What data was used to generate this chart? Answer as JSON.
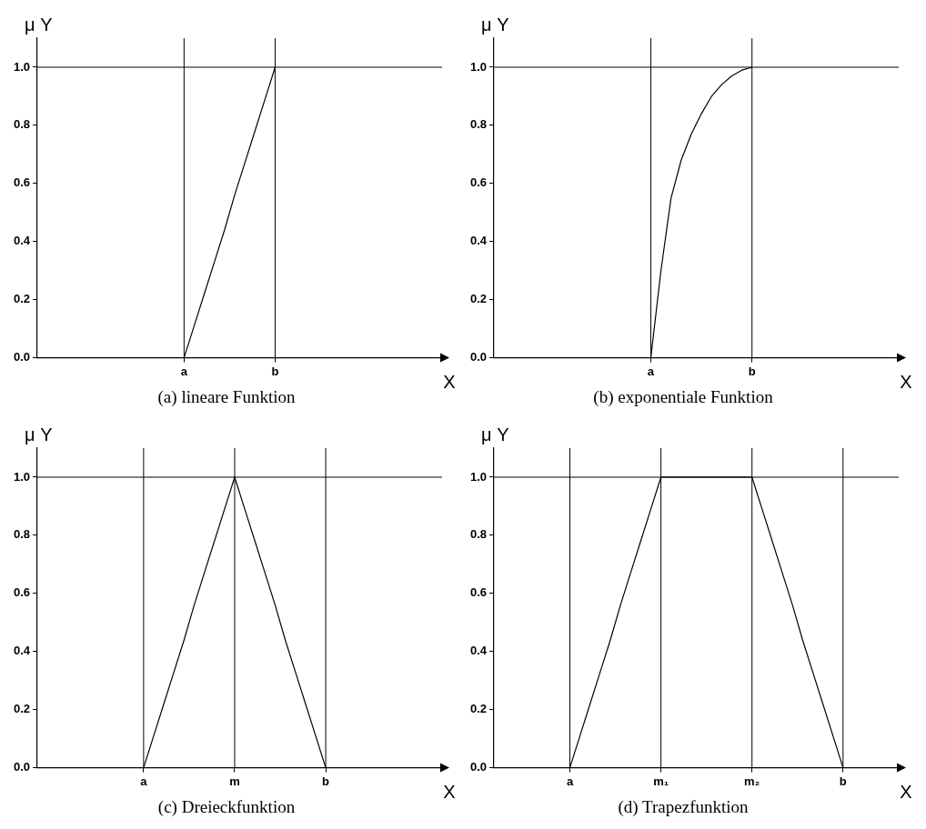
{
  "chart_data": [
    {
      "type": "line",
      "title": "(a) lineare Funktion",
      "xlabel": "X",
      "ylabel": "μ Y",
      "categories": [
        null,
        null,
        null,
        null,
        null,
        null,
        null,
        null,
        null,
        null,
        null,
        null,
        null,
        null,
        "a",
        null,
        null,
        null,
        null,
        null,
        null,
        null,
        null,
        "b",
        null,
        null,
        null,
        null,
        null,
        null,
        null,
        null,
        null,
        null,
        null,
        null,
        null,
        null,
        null,
        null
      ],
      "ylim": [
        0,
        1.1
      ],
      "yticks": [
        {
          "value": 0,
          "label": "0.0"
        },
        {
          "value": 0.2,
          "label": "0.2"
        },
        {
          "value": 0.4,
          "label": "0.4"
        },
        {
          "value": 0.6,
          "label": "0.6"
        },
        {
          "value": 0.8,
          "label": "0.8"
        },
        {
          "value": 1,
          "label": "1.0"
        }
      ],
      "grid": false,
      "legend": false,
      "series": [
        {
          "color": "#000000",
          "values": [
            null,
            null,
            null,
            null,
            null,
            null,
            null,
            null,
            null,
            null,
            null,
            null,
            null,
            null,
            0,
            0.11,
            0.22,
            0.33,
            0.44,
            0.56,
            0.67,
            0.78,
            0.89,
            1,
            null,
            null,
            null,
            null,
            null,
            null,
            null,
            null,
            null,
            null,
            null,
            null,
            null,
            null,
            null,
            null
          ]
        }
      ],
      "ref_lines": [
        {
          "axis": "y",
          "value": 1,
          "color": "#000000"
        },
        {
          "axis": "x",
          "value": "a",
          "color": "#000000"
        },
        {
          "axis": "x",
          "value": "b",
          "color": "#000000"
        }
      ]
    },
    {
      "type": "line",
      "title": "(b) exponentiale Funktion",
      "xlabel": "X",
      "ylabel": "μ Y",
      "categories": [
        null,
        null,
        null,
        null,
        null,
        null,
        null,
        null,
        null,
        null,
        null,
        null,
        null,
        null,
        null,
        "a",
        null,
        null,
        null,
        null,
        null,
        null,
        null,
        null,
        null,
        "b",
        null,
        null,
        null,
        null,
        null,
        null,
        null,
        null,
        null,
        null,
        null,
        null,
        null,
        null
      ],
      "ylim": [
        0,
        1.1
      ],
      "yticks": [
        {
          "value": 0,
          "label": "0.0"
        },
        {
          "value": 0.2,
          "label": "0.2"
        },
        {
          "value": 0.4,
          "label": "0.4"
        },
        {
          "value": 0.6,
          "label": "0.6"
        },
        {
          "value": 0.8,
          "label": "0.8"
        },
        {
          "value": 1,
          "label": "1.0"
        }
      ],
      "grid": false,
      "legend": false,
      "series": [
        {
          "color": "#000000",
          "values": [
            null,
            null,
            null,
            null,
            null,
            null,
            null,
            null,
            null,
            null,
            null,
            null,
            null,
            null,
            null,
            0,
            0.3,
            0.55,
            0.68,
            0.77,
            0.84,
            0.9,
            0.94,
            0.97,
            0.99,
            1,
            null,
            null,
            null,
            null,
            null,
            null,
            null,
            null,
            null,
            null,
            null,
            null,
            null,
            null
          ]
        }
      ],
      "ref_lines": [
        {
          "axis": "y",
          "value": 1,
          "color": "#000000"
        },
        {
          "axis": "x",
          "value": "a",
          "color": "#000000"
        },
        {
          "axis": "x",
          "value": "b",
          "color": "#000000"
        }
      ]
    },
    {
      "type": "line",
      "title": "(c) Dreieckfunktion",
      "xlabel": "X",
      "ylabel": "μ Y",
      "categories": [
        null,
        null,
        null,
        null,
        null,
        null,
        null,
        null,
        null,
        null,
        "a",
        null,
        null,
        null,
        null,
        null,
        null,
        null,
        null,
        "m",
        null,
        null,
        null,
        null,
        null,
        null,
        null,
        null,
        "b",
        null,
        null,
        null,
        null,
        null,
        null,
        null,
        null,
        null,
        null,
        null
      ],
      "ylim": [
        0,
        1.1
      ],
      "yticks": [
        {
          "value": 0,
          "label": "0.0"
        },
        {
          "value": 0.2,
          "label": "0.2"
        },
        {
          "value": 0.4,
          "label": "0.4"
        },
        {
          "value": 0.6,
          "label": "0.6"
        },
        {
          "value": 0.8,
          "label": "0.8"
        },
        {
          "value": 1,
          "label": "1.0"
        }
      ],
      "grid": false,
      "legend": false,
      "series": [
        {
          "color": "#000000",
          "values": [
            null,
            null,
            null,
            null,
            null,
            null,
            null,
            null,
            null,
            null,
            0,
            0.11,
            0.22,
            0.33,
            0.44,
            0.56,
            0.67,
            0.78,
            0.89,
            1,
            0.89,
            0.78,
            0.67,
            0.56,
            0.44,
            0.33,
            0.22,
            0.11,
            0,
            null,
            null,
            null,
            null,
            null,
            null,
            null,
            null,
            null,
            null,
            null
          ]
        }
      ],
      "ref_lines": [
        {
          "axis": "y",
          "value": 1,
          "color": "#000000"
        },
        {
          "axis": "x",
          "value": "a",
          "color": "#000000"
        },
        {
          "axis": "x",
          "value": "m",
          "color": "#000000"
        },
        {
          "axis": "x",
          "value": "b",
          "color": "#000000"
        }
      ]
    },
    {
      "type": "line",
      "title": "(d) Trapezfunktion",
      "xlabel": "X",
      "ylabel": "μ Y",
      "categories": [
        null,
        null,
        null,
        null,
        null,
        null,
        null,
        "a",
        null,
        null,
        null,
        null,
        null,
        null,
        null,
        null,
        "m₁",
        null,
        null,
        null,
        null,
        null,
        null,
        null,
        null,
        "m₂",
        null,
        null,
        null,
        null,
        null,
        null,
        null,
        null,
        "b",
        null,
        null,
        null,
        null,
        null
      ],
      "ylim": [
        0,
        1.1
      ],
      "yticks": [
        {
          "value": 0,
          "label": "0.0"
        },
        {
          "value": 0.2,
          "label": "0.2"
        },
        {
          "value": 0.4,
          "label": "0.4"
        },
        {
          "value": 0.6,
          "label": "0.6"
        },
        {
          "value": 0.8,
          "label": "0.8"
        },
        {
          "value": 1,
          "label": "1.0"
        }
      ],
      "grid": false,
      "legend": false,
      "series": [
        {
          "color": "#000000",
          "values": [
            null,
            null,
            null,
            null,
            null,
            null,
            null,
            0,
            0.11,
            0.22,
            0.33,
            0.44,
            0.56,
            0.67,
            0.78,
            0.89,
            1,
            1,
            1,
            1,
            1,
            1,
            1,
            1,
            1,
            1,
            0.89,
            0.78,
            0.67,
            0.56,
            0.44,
            0.33,
            0.22,
            0.11,
            0,
            null,
            null,
            null,
            null,
            null
          ]
        }
      ],
      "ref_lines": [
        {
          "axis": "y",
          "value": 1,
          "color": "#000000"
        },
        {
          "axis": "x",
          "value": "a",
          "color": "#000000"
        },
        {
          "axis": "x",
          "value": "m₁",
          "color": "#000000"
        },
        {
          "axis": "x",
          "value": "m₂",
          "color": "#000000"
        },
        {
          "axis": "x",
          "value": "b",
          "color": "#000000"
        }
      ]
    }
  ]
}
